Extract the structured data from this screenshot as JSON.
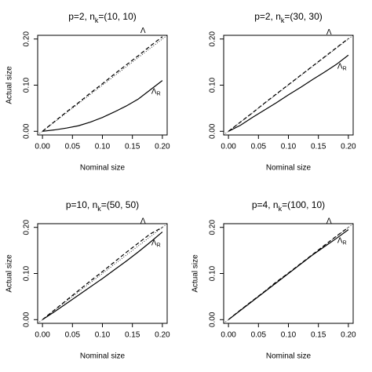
{
  "chart_data": [
    {
      "type": "line",
      "title": [
        "p=2, n",
        "k",
        "=(10, 10)"
      ],
      "xlabel": "Nominal size",
      "ylabel": "Actual size",
      "x": [
        0,
        0.02,
        0.04,
        0.06,
        0.08,
        0.1,
        0.12,
        0.14,
        0.16,
        0.18,
        0.2
      ],
      "series": [
        {
          "name": [
            "Λ"
          ],
          "color": "#000000",
          "line_style": "dashed",
          "values": [
            0,
            0.021,
            0.042,
            0.062,
            0.083,
            0.103,
            0.124,
            0.144,
            0.164,
            0.185,
            0.205
          ]
        },
        {
          "name": [
            "Λ",
            "R"
          ],
          "color": "#000000",
          "line_style": "solid",
          "values": [
            0,
            0.003,
            0.007,
            0.012,
            0.02,
            0.03,
            0.042,
            0.055,
            0.07,
            0.09,
            0.11
          ]
        }
      ],
      "xlim": [
        -0.008,
        0.208
      ],
      "ylim": [
        -0.008,
        0.208
      ],
      "xticks": [
        {
          "value": 0,
          "label": "0.00"
        },
        {
          "value": 0.05,
          "label": "0.05"
        },
        {
          "value": 0.1,
          "label": "0.10"
        },
        {
          "value": 0.15,
          "label": "0.15"
        },
        {
          "value": 0.2,
          "label": "0.20"
        }
      ],
      "yticks": [
        {
          "value": 0,
          "label": "0.00"
        },
        {
          "value": 0.1,
          "label": "0.10"
        },
        {
          "value": 0.2,
          "label": "0.20"
        }
      ]
    },
    {
      "type": "line",
      "title": [
        "p=2, n",
        "k",
        "=(30, 30)"
      ],
      "xlabel": "Nominal size",
      "x": [
        0,
        0.02,
        0.04,
        0.06,
        0.08,
        0.1,
        0.12,
        0.14,
        0.16,
        0.18,
        0.2
      ],
      "series": [
        {
          "name": [
            "Λ"
          ],
          "color": "#000000",
          "line_style": "dashed",
          "values": [
            0,
            0.02,
            0.04,
            0.061,
            0.081,
            0.101,
            0.121,
            0.141,
            0.161,
            0.181,
            0.201
          ]
        },
        {
          "name": [
            "Λ",
            "R"
          ],
          "color": "#000000",
          "line_style": "solid",
          "values": [
            0,
            0.013,
            0.03,
            0.046,
            0.062,
            0.079,
            0.095,
            0.112,
            0.128,
            0.145,
            0.165
          ]
        }
      ],
      "xlim": [
        -0.008,
        0.208
      ],
      "ylim": [
        -0.008,
        0.208
      ],
      "xticks": [
        {
          "value": 0,
          "label": "0.00"
        },
        {
          "value": 0.05,
          "label": "0.05"
        },
        {
          "value": 0.1,
          "label": "0.10"
        },
        {
          "value": 0.15,
          "label": "0.15"
        },
        {
          "value": 0.2,
          "label": "0.20"
        }
      ],
      "yticks": [
        {
          "value": 0,
          "label": "0.00"
        },
        {
          "value": 0.1,
          "label": "0.10"
        },
        {
          "value": 0.2,
          "label": "0.20"
        }
      ]
    },
    {
      "type": "line",
      "title": [
        "p=10, n",
        "k",
        "=(50, 50)"
      ],
      "xlabel": "Nominal size",
      "ylabel": "Actual size",
      "x": [
        0,
        0.02,
        0.04,
        0.06,
        0.08,
        0.1,
        0.12,
        0.14,
        0.16,
        0.18,
        0.2
      ],
      "series": [
        {
          "name": [
            "Λ"
          ],
          "color": "#000000",
          "line_style": "dashed",
          "values": [
            0,
            0.021,
            0.042,
            0.063,
            0.084,
            0.104,
            0.125,
            0.146,
            0.166,
            0.186,
            0.2
          ]
        },
        {
          "name": [
            "Λ",
            "R"
          ],
          "color": "#000000",
          "line_style": "solid",
          "values": [
            0,
            0.017,
            0.035,
            0.053,
            0.071,
            0.089,
            0.108,
            0.127,
            0.147,
            0.168,
            0.19
          ]
        }
      ],
      "xlim": [
        -0.008,
        0.208
      ],
      "ylim": [
        -0.008,
        0.208
      ],
      "xticks": [
        {
          "value": 0,
          "label": "0.00"
        },
        {
          "value": 0.05,
          "label": "0.05"
        },
        {
          "value": 0.1,
          "label": "0.10"
        },
        {
          "value": 0.15,
          "label": "0.15"
        },
        {
          "value": 0.2,
          "label": "0.20"
        }
      ],
      "yticks": [
        {
          "value": 0,
          "label": "0.00"
        },
        {
          "value": 0.1,
          "label": "0.10"
        },
        {
          "value": 0.2,
          "label": "0.20"
        }
      ]
    },
    {
      "type": "line",
      "title": [
        "p=4, n",
        "k",
        "=(100, 10)"
      ],
      "xlabel": "Nominal size",
      "ylabel": "Actual size",
      "x": [
        0,
        0.02,
        0.04,
        0.06,
        0.08,
        0.1,
        0.12,
        0.14,
        0.16,
        0.18,
        0.2
      ],
      "series": [
        {
          "name": [
            "Λ"
          ],
          "color": "#000000",
          "line_style": "dashed",
          "values": [
            0,
            0.021,
            0.041,
            0.061,
            0.082,
            0.101,
            0.121,
            0.141,
            0.161,
            0.181,
            0.2
          ]
        },
        {
          "name": [
            "Λ",
            "R"
          ],
          "color": "#000000",
          "line_style": "solid",
          "values": [
            0,
            0.02,
            0.04,
            0.06,
            0.08,
            0.1,
            0.12,
            0.14,
            0.158,
            0.176,
            0.195
          ]
        }
      ],
      "xlim": [
        -0.008,
        0.208
      ],
      "ylim": [
        -0.008,
        0.208
      ],
      "xticks": [
        {
          "value": 0,
          "label": "0.00"
        },
        {
          "value": 0.05,
          "label": "0.05"
        },
        {
          "value": 0.1,
          "label": "0.10"
        },
        {
          "value": 0.15,
          "label": "0.15"
        },
        {
          "value": 0.2,
          "label": "0.20"
        }
      ],
      "yticks": [
        {
          "value": 0,
          "label": "0.00"
        },
        {
          "value": 0.1,
          "label": "0.10"
        },
        {
          "value": 0.2,
          "label": "0.20"
        }
      ]
    }
  ]
}
